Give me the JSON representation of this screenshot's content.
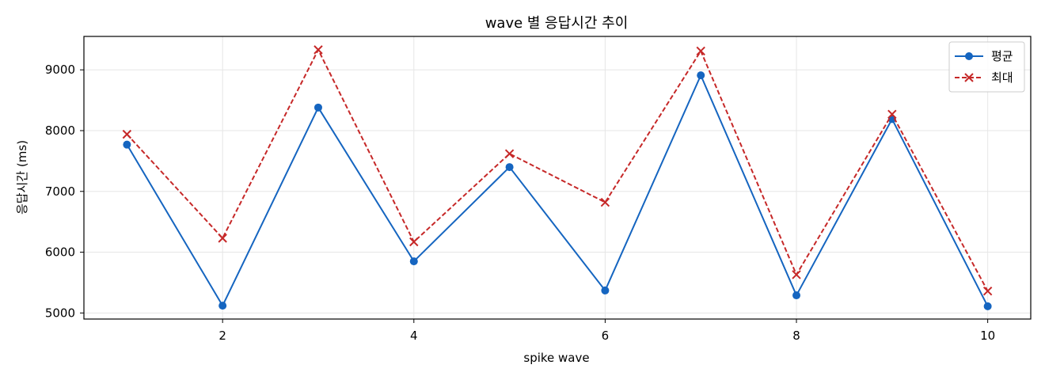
{
  "chart_data": {
    "type": "line",
    "title": "wave 별 응답시간 추이",
    "xlabel": "spike wave",
    "ylabel": "응답시간 (ms)",
    "x": [
      1,
      2,
      3,
      4,
      5,
      6,
      7,
      8,
      9,
      10
    ],
    "xlim": [
      0.55,
      10.45
    ],
    "ylim": [
      4900,
      9550
    ],
    "xticks": [
      2,
      4,
      6,
      8,
      10
    ],
    "yticks": [
      5000,
      6000,
      7000,
      8000,
      9000
    ],
    "grid": true,
    "legend_position": "top-right",
    "series": [
      {
        "name": "평균",
        "color": "#1565c0",
        "line_style": "solid",
        "marker": "circle",
        "values": [
          7770,
          5120,
          8380,
          5850,
          7400,
          5370,
          8910,
          5290,
          8190,
          5110
        ]
      },
      {
        "name": "최대",
        "color": "#c62828",
        "line_style": "dashed",
        "marker": "x",
        "values": [
          7940,
          6230,
          9330,
          6170,
          7620,
          6820,
          9310,
          5630,
          8270,
          5360
        ]
      }
    ]
  }
}
